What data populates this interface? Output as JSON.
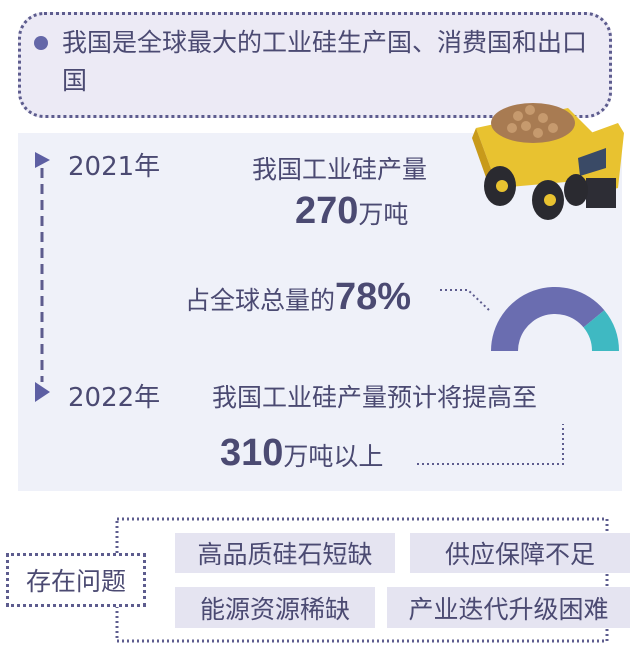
{
  "headline": {
    "text": "我国是全球最大的工业硅生产国、消费国和出口国"
  },
  "timeline": [
    {
      "year": "2021年",
      "label": "我国工业硅产量",
      "value": "270",
      "unit": "万吨"
    },
    {
      "year": "2022年",
      "label": "我国工业硅产量预计将提高至",
      "value": "310",
      "unit": "万吨以上"
    }
  ],
  "share": {
    "label": "占全球总量的",
    "value": "78%",
    "percent": 78,
    "colors": {
      "china": "#6a6db0",
      "rest": "#3fb9c2"
    }
  },
  "issues": {
    "title": "存在问题",
    "items": [
      "高品质硅石短缺",
      "供应保障不足",
      "能源资源稀缺",
      "产业迭代升级困难"
    ]
  },
  "icons": {
    "truck": "dump-truck-icon"
  }
}
